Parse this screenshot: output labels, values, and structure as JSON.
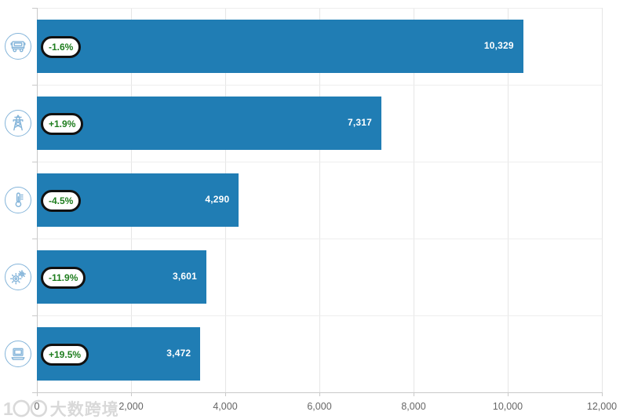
{
  "chart_data": {
    "type": "bar",
    "orientation": "horizontal",
    "title": "",
    "xlabel": "",
    "ylabel": "",
    "categories": [
      "truck",
      "power-tower",
      "thermometer",
      "gears",
      "laptop"
    ],
    "series": [
      {
        "name": "value",
        "values": [
          10329,
          7317,
          4290,
          3601,
          3472
        ],
        "value_labels": [
          "10,329",
          "7,317",
          "4,290",
          "3,601",
          "3,472"
        ]
      }
    ],
    "change_badges": [
      "-1.6%",
      "+1.9%",
      "-4.5%",
      "-11.9%",
      "+19.5%"
    ],
    "xlim": [
      0,
      12000
    ],
    "x_ticks": [
      0,
      2000,
      4000,
      6000,
      8000,
      10000,
      12000
    ],
    "x_tick_labels": [
      "0",
      "2,000",
      "4,000",
      "6,000",
      "8,000",
      "10,000",
      "12,000"
    ],
    "grid": true,
    "legend": false,
    "colors": {
      "bar": "#207db4",
      "badge_text": "#1e7d1e",
      "badge_border": "#111111",
      "badge_background": "#ffffff",
      "icon": "#85b5da",
      "vertical_gridline": "#e6e6e6",
      "row_gridline": "#ededed",
      "axis_line": "#c9c9c9",
      "tick_label": "#666666",
      "value_label": "#ffffff"
    }
  },
  "watermark": {
    "logo": "1〇〇",
    "text": "大数跨境"
  }
}
